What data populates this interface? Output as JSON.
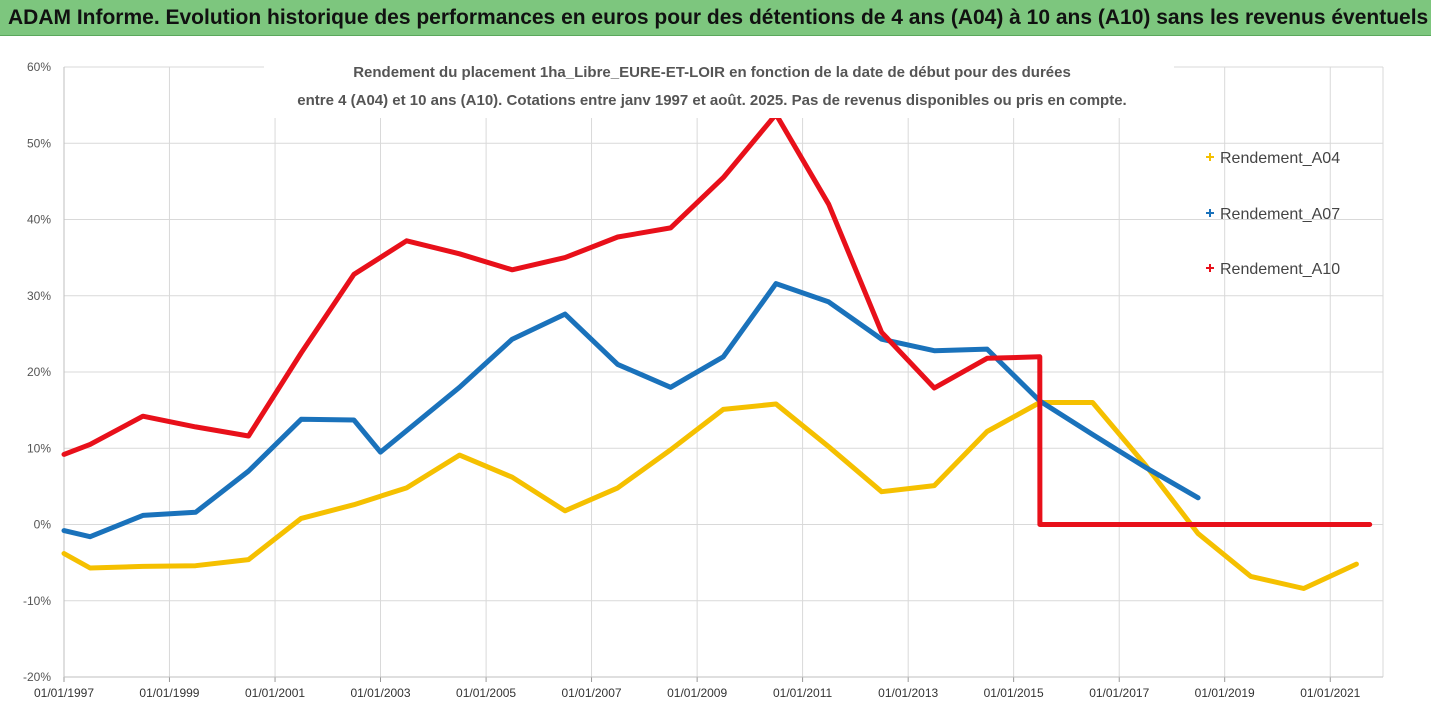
{
  "banner": {
    "text": "ADAM Informe. Evolution historique des performances en euros pour des détentions de 4 ans (A04) à 10 ans (A10) sans les revenus éventuels"
  },
  "chart_data": {
    "type": "line",
    "title_lines": [
      "Rendement du placement 1ha_Libre_EURE-ET-LOIR en fonction de la date de début pour des durées",
      "entre 4 (A04) et 10 ans (A10). Cotations entre janv 1997 et août. 2025. Pas de revenus disponibles ou pris en compte."
    ],
    "xlabel": "",
    "ylabel": "",
    "x_ticks": [
      "01/01/1997",
      "01/01/1999",
      "01/01/2001",
      "01/01/2003",
      "01/01/2005",
      "01/01/2007",
      "01/01/2009",
      "01/01/2011",
      "01/01/2013",
      "01/01/2015",
      "01/01/2017",
      "01/01/2019",
      "01/01/2021"
    ],
    "x_range": [
      "1997-01-01",
      "2022-01-01"
    ],
    "y_ticks": [
      "60%",
      "50%",
      "40%",
      "30%",
      "20%",
      "10%",
      "0%",
      "-10%",
      "-20%"
    ],
    "ylim": [
      -20,
      60
    ],
    "grid": true,
    "legend_position": "right",
    "series": [
      {
        "name": "Rendement_A04",
        "color": "#f5c000",
        "points": [
          [
            "1997-01-01",
            -3.8
          ],
          [
            "1997-07-01",
            -5.7
          ],
          [
            "1998-07-01",
            -5.5
          ],
          [
            "1999-07-01",
            -5.4
          ],
          [
            "2000-07-01",
            -4.6
          ],
          [
            "2001-07-01",
            0.8
          ],
          [
            "2002-07-01",
            2.6
          ],
          [
            "2003-07-01",
            4.8
          ],
          [
            "2004-07-01",
            9.1
          ],
          [
            "2005-07-01",
            6.2
          ],
          [
            "2006-07-01",
            1.8
          ],
          [
            "2007-07-01",
            4.8
          ],
          [
            "2008-07-01",
            9.8
          ],
          [
            "2009-07-01",
            15.1
          ],
          [
            "2010-07-01",
            15.8
          ],
          [
            "2011-07-01",
            10.2
          ],
          [
            "2012-07-01",
            4.3
          ],
          [
            "2013-07-01",
            5.1
          ],
          [
            "2014-07-01",
            12.2
          ],
          [
            "2015-07-01",
            16.0
          ],
          [
            "2016-07-01",
            16.0
          ],
          [
            "2017-07-01",
            7.8
          ],
          [
            "2018-07-01",
            -1.2
          ],
          [
            "2019-07-01",
            -6.8
          ],
          [
            "2020-07-01",
            -8.4
          ],
          [
            "2021-07-01",
            -5.2
          ]
        ]
      },
      {
        "name": "Rendement_A07",
        "color": "#1a72bb",
        "points": [
          [
            "1997-01-01",
            -0.8
          ],
          [
            "1997-07-01",
            -1.6
          ],
          [
            "1998-07-01",
            1.2
          ],
          [
            "1999-07-01",
            1.6
          ],
          [
            "2000-07-01",
            7.0
          ],
          [
            "2001-07-01",
            13.8
          ],
          [
            "2002-07-01",
            13.7
          ],
          [
            "2003-01-01",
            9.5
          ],
          [
            "2004-07-01",
            18.0
          ],
          [
            "2005-07-01",
            24.3
          ],
          [
            "2006-07-01",
            27.6
          ],
          [
            "2007-07-01",
            21.0
          ],
          [
            "2008-07-01",
            18.0
          ],
          [
            "2009-07-01",
            22.0
          ],
          [
            "2010-07-01",
            31.6
          ],
          [
            "2011-07-01",
            29.2
          ],
          [
            "2012-07-01",
            24.3
          ],
          [
            "2013-07-01",
            22.8
          ],
          [
            "2014-07-01",
            23.0
          ],
          [
            "2015-07-01",
            16.2
          ],
          [
            "2016-07-01",
            11.8
          ],
          [
            "2017-07-01",
            7.5
          ],
          [
            "2018-07-01",
            3.5
          ]
        ]
      },
      {
        "name": "Rendement_A10",
        "color": "#e8101a",
        "points": [
          [
            "1997-01-01",
            9.2
          ],
          [
            "1997-07-01",
            10.5
          ],
          [
            "1998-07-01",
            14.2
          ],
          [
            "1999-07-01",
            12.8
          ],
          [
            "2000-07-01",
            11.6
          ],
          [
            "2001-07-01",
            22.5
          ],
          [
            "2002-07-01",
            32.8
          ],
          [
            "2003-07-01",
            37.2
          ],
          [
            "2004-07-01",
            35.5
          ],
          [
            "2005-07-01",
            33.4
          ],
          [
            "2006-07-01",
            35.0
          ],
          [
            "2007-07-01",
            37.7
          ],
          [
            "2008-07-01",
            38.9
          ],
          [
            "2009-07-01",
            45.5
          ],
          [
            "2010-07-01",
            53.8
          ],
          [
            "2011-07-01",
            42.0
          ],
          [
            "2012-07-01",
            25.2
          ],
          [
            "2013-07-01",
            17.9
          ],
          [
            "2014-07-01",
            21.8
          ],
          [
            "2015-07-01",
            22.0
          ],
          [
            "2015-07-02",
            0.0
          ],
          [
            "2021-10-01",
            0.0
          ]
        ]
      }
    ]
  }
}
